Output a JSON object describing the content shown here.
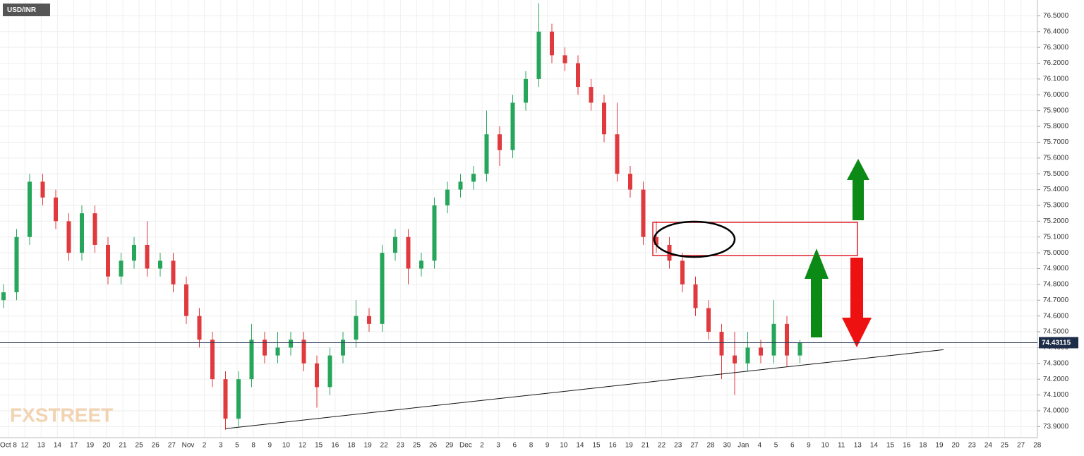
{
  "chart_data": {
    "type": "candlestick",
    "title": "USD/INR",
    "watermark": "FXSTREET",
    "up_color": "#26a65b",
    "down_color": "#e0393e",
    "ylim": [
      73.83,
      76.6
    ],
    "yticks": [
      {
        "value": 73.9,
        "label": "73.9000"
      },
      {
        "value": 74.0,
        "label": "74.0000"
      },
      {
        "value": 74.1,
        "label": "74.1000"
      },
      {
        "value": 74.2,
        "label": "74.2000"
      },
      {
        "value": 74.3,
        "label": "74.3000"
      },
      {
        "value": 74.4,
        "label": "74.4000"
      },
      {
        "value": 74.5,
        "label": "74.5000"
      },
      {
        "value": 74.6,
        "label": "74.6000"
      },
      {
        "value": 74.7,
        "label": "74.7000"
      },
      {
        "value": 74.8,
        "label": "74.8000"
      },
      {
        "value": 74.9,
        "label": "74.9000"
      },
      {
        "value": 75.0,
        "label": "75.0000"
      },
      {
        "value": 75.1,
        "label": "75.1000"
      },
      {
        "value": 75.2,
        "label": "75.2000"
      },
      {
        "value": 75.3,
        "label": "75.3000"
      },
      {
        "value": 75.4,
        "label": "75.4000"
      },
      {
        "value": 75.5,
        "label": "75.5000"
      },
      {
        "value": 75.6,
        "label": "75.6000"
      },
      {
        "value": 75.7,
        "label": "75.7000"
      },
      {
        "value": 75.8,
        "label": "75.8000"
      },
      {
        "value": 75.9,
        "label": "75.9000"
      },
      {
        "value": 76.0,
        "label": "76.0000"
      },
      {
        "value": 76.1,
        "label": "76.1000"
      },
      {
        "value": 76.2,
        "label": "76.2000"
      },
      {
        "value": 76.3,
        "label": "76.3000"
      },
      {
        "value": 76.4,
        "label": "76.4000"
      },
      {
        "value": 76.5,
        "label": "76.5000"
      }
    ],
    "x_labels": [
      "Oct 8",
      "12",
      "13",
      "14",
      "17",
      "19",
      "20",
      "21",
      "25",
      "26",
      "27",
      "Nov",
      "2",
      "3",
      "5",
      "8",
      "9",
      "10",
      "12",
      "15",
      "16",
      "18",
      "19",
      "22",
      "23",
      "25",
      "26",
      "29",
      "Dec",
      "2",
      "3",
      "6",
      "8",
      "9",
      "10",
      "14",
      "15",
      "16",
      "19",
      "21",
      "22",
      "23",
      "27",
      "28",
      "30",
      "Jan",
      "4",
      "5",
      "6",
      "9",
      "10",
      "11",
      "13",
      "14",
      "15",
      "16",
      "18",
      "19",
      "20",
      "23",
      "24",
      "25",
      "27",
      "28"
    ],
    "current_price": 74.43115,
    "trendline": {
      "x": [
        17,
        72
      ],
      "y": [
        73.887,
        74.387
      ]
    },
    "ohlc": [
      [
        74.7,
        74.8,
        74.65,
        74.75
      ],
      [
        74.75,
        75.15,
        74.7,
        75.1
      ],
      [
        75.1,
        75.5,
        75.05,
        75.45
      ],
      [
        75.45,
        75.5,
        75.3,
        75.35
      ],
      [
        75.35,
        75.4,
        75.15,
        75.2
      ],
      [
        75.2,
        75.25,
        74.95,
        75.0
      ],
      [
        75.0,
        75.3,
        74.95,
        75.25
      ],
      [
        75.25,
        75.3,
        75.0,
        75.05
      ],
      [
        75.05,
        75.1,
        74.8,
        74.85
      ],
      [
        74.85,
        75.0,
        74.8,
        74.95
      ],
      [
        74.95,
        75.1,
        74.9,
        75.05
      ],
      [
        75.05,
        75.2,
        74.85,
        74.9
      ],
      [
        74.9,
        75.0,
        74.85,
        74.95
      ],
      [
        74.95,
        75.0,
        74.75,
        74.8
      ],
      [
        74.8,
        74.85,
        74.55,
        74.6
      ],
      [
        74.6,
        74.65,
        74.4,
        74.45
      ],
      [
        74.45,
        74.5,
        74.15,
        74.2
      ],
      [
        74.2,
        74.25,
        73.88,
        73.95
      ],
      [
        73.95,
        74.25,
        73.9,
        74.2
      ],
      [
        74.2,
        74.55,
        74.15,
        74.45
      ],
      [
        74.45,
        74.5,
        74.3,
        74.35
      ],
      [
        74.35,
        74.5,
        74.3,
        74.4
      ],
      [
        74.4,
        74.5,
        74.35,
        74.45
      ],
      [
        74.45,
        74.5,
        74.25,
        74.3
      ],
      [
        74.3,
        74.35,
        74.02,
        74.15
      ],
      [
        74.15,
        74.4,
        74.1,
        74.35
      ],
      [
        74.35,
        74.5,
        74.3,
        74.45
      ],
      [
        74.45,
        74.7,
        74.4,
        74.6
      ],
      [
        74.6,
        74.65,
        74.5,
        74.55
      ],
      [
        74.55,
        75.05,
        74.5,
        75.0
      ],
      [
        75.0,
        75.15,
        74.95,
        75.1
      ],
      [
        75.1,
        75.15,
        74.8,
        74.9
      ],
      [
        74.9,
        75.0,
        74.85,
        74.95
      ],
      [
        74.95,
        75.35,
        74.9,
        75.3
      ],
      [
        75.3,
        75.45,
        75.25,
        75.4
      ],
      [
        75.4,
        75.5,
        75.35,
        75.45
      ],
      [
        75.45,
        75.55,
        75.4,
        75.5
      ],
      [
        75.5,
        75.9,
        75.45,
        75.75
      ],
      [
        75.75,
        75.8,
        75.55,
        75.65
      ],
      [
        75.65,
        76.0,
        75.6,
        75.95
      ],
      [
        75.95,
        76.15,
        75.9,
        76.1
      ],
      [
        76.1,
        76.58,
        76.05,
        76.4
      ],
      [
        76.4,
        76.45,
        76.2,
        76.25
      ],
      [
        76.25,
        76.3,
        76.15,
        76.2
      ],
      [
        76.2,
        76.25,
        76.0,
        76.05
      ],
      [
        76.05,
        76.1,
        75.9,
        75.95
      ],
      [
        75.95,
        76.0,
        75.7,
        75.75
      ],
      [
        75.75,
        75.95,
        75.45,
        75.5
      ],
      [
        75.5,
        75.55,
        75.35,
        75.4
      ],
      [
        75.4,
        75.45,
        75.05,
        75.1
      ],
      [
        75.1,
        75.2,
        75.0,
        75.05
      ],
      [
        75.05,
        75.1,
        74.9,
        74.95
      ],
      [
        74.95,
        75.0,
        74.75,
        74.8
      ],
      [
        74.8,
        74.85,
        74.6,
        74.65
      ],
      [
        74.65,
        74.7,
        74.45,
        74.5
      ],
      [
        74.5,
        74.55,
        74.2,
        74.35
      ],
      [
        74.35,
        74.5,
        74.1,
        74.3
      ],
      [
        74.3,
        74.5,
        74.25,
        74.4
      ],
      [
        74.4,
        74.45,
        74.3,
        74.35
      ],
      [
        74.35,
        74.7,
        74.3,
        74.55
      ],
      [
        74.55,
        74.6,
        74.28,
        74.35
      ],
      [
        74.35,
        74.45,
        74.3,
        74.43
      ]
    ]
  }
}
